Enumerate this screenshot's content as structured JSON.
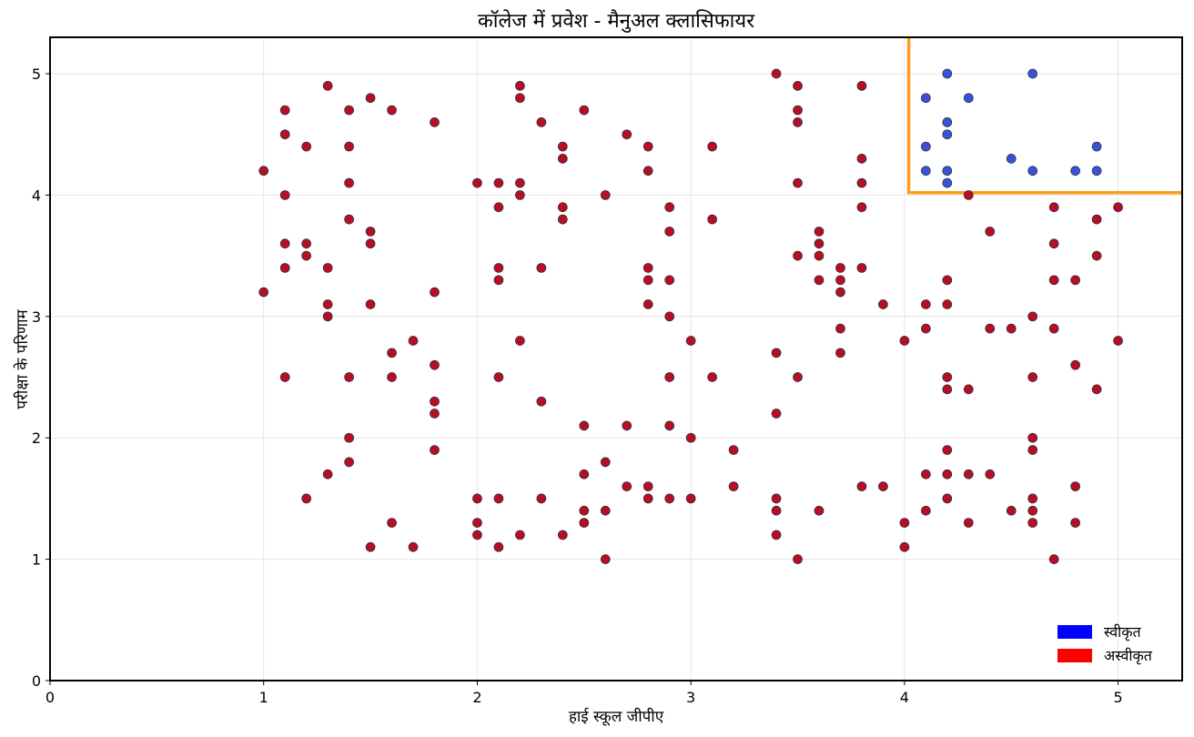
{
  "chart_data": {
    "type": "scatter",
    "title": "कॉलेज में प्रवेश - मैनुअल क्लासिफायर",
    "xlabel": "हाई स्कूल जीपीए",
    "ylabel": "परीक्षा के परिणाम",
    "xlim": [
      0,
      5.3
    ],
    "ylim": [
      0,
      5.3
    ],
    "xticks": [
      "0",
      "1",
      "2",
      "3",
      "4",
      "5"
    ],
    "yticks": [
      "0",
      "1",
      "2",
      "3",
      "4",
      "5"
    ],
    "grid": true,
    "legend_position": "bottom-right",
    "decision_boundary": {
      "x": 4.02,
      "y": 4.02,
      "color": "#ff9c1c"
    },
    "series": [
      {
        "name": "स्वीकृत",
        "color": "#3a52d6",
        "legend_color": "#0000ff",
        "points": [
          [
            4.1,
            4.8
          ],
          [
            4.2,
            5.0
          ],
          [
            4.3,
            4.8
          ],
          [
            4.6,
            5.0
          ],
          [
            4.2,
            4.6
          ],
          [
            4.2,
            4.5
          ],
          [
            4.1,
            4.4
          ],
          [
            4.9,
            4.4
          ],
          [
            4.5,
            4.3
          ],
          [
            4.1,
            4.2
          ],
          [
            4.2,
            4.2
          ],
          [
            4.6,
            4.2
          ],
          [
            4.8,
            4.2
          ],
          [
            4.9,
            4.2
          ],
          [
            4.2,
            4.1
          ]
        ]
      },
      {
        "name": "अस्वीकृत",
        "color": "#b40f24",
        "legend_color": "#ff0000",
        "points": [
          [
            1.0,
            4.2
          ],
          [
            1.0,
            3.2
          ],
          [
            1.1,
            4.7
          ],
          [
            1.1,
            4.5
          ],
          [
            1.1,
            4.0
          ],
          [
            1.1,
            3.6
          ],
          [
            1.1,
            3.4
          ],
          [
            1.1,
            2.5
          ],
          [
            1.2,
            4.4
          ],
          [
            1.2,
            3.6
          ],
          [
            1.2,
            3.5
          ],
          [
            1.2,
            1.5
          ],
          [
            1.3,
            4.9
          ],
          [
            1.3,
            3.4
          ],
          [
            1.3,
            3.1
          ],
          [
            1.3,
            3.0
          ],
          [
            1.3,
            1.7
          ],
          [
            1.4,
            4.7
          ],
          [
            1.4,
            4.4
          ],
          [
            1.4,
            4.1
          ],
          [
            1.4,
            3.8
          ],
          [
            1.4,
            2.5
          ],
          [
            1.4,
            2.0
          ],
          [
            1.4,
            1.8
          ],
          [
            1.5,
            4.8
          ],
          [
            1.5,
            3.7
          ],
          [
            1.5,
            3.6
          ],
          [
            1.5,
            3.1
          ],
          [
            1.5,
            1.1
          ],
          [
            1.6,
            4.7
          ],
          [
            1.6,
            2.7
          ],
          [
            1.6,
            2.5
          ],
          [
            1.6,
            1.3
          ],
          [
            1.7,
            2.8
          ],
          [
            1.7,
            1.1
          ],
          [
            1.8,
            4.6
          ],
          [
            1.8,
            3.2
          ],
          [
            1.8,
            2.6
          ],
          [
            1.8,
            2.3
          ],
          [
            1.8,
            2.2
          ],
          [
            1.8,
            1.9
          ],
          [
            2.0,
            4.1
          ],
          [
            2.0,
            1.5
          ],
          [
            2.0,
            1.3
          ],
          [
            2.0,
            1.2
          ],
          [
            2.1,
            4.1
          ],
          [
            2.1,
            3.9
          ],
          [
            2.1,
            3.4
          ],
          [
            2.1,
            3.3
          ],
          [
            2.1,
            2.5
          ],
          [
            2.1,
            1.5
          ],
          [
            2.1,
            1.1
          ],
          [
            2.2,
            4.9
          ],
          [
            2.2,
            4.8
          ],
          [
            2.2,
            4.1
          ],
          [
            2.2,
            4.0
          ],
          [
            2.2,
            2.8
          ],
          [
            2.2,
            1.2
          ],
          [
            2.3,
            4.6
          ],
          [
            2.3,
            3.4
          ],
          [
            2.3,
            2.3
          ],
          [
            2.3,
            1.5
          ],
          [
            2.4,
            4.4
          ],
          [
            2.4,
            4.3
          ],
          [
            2.4,
            3.9
          ],
          [
            2.4,
            3.8
          ],
          [
            2.4,
            1.2
          ],
          [
            2.5,
            4.7
          ],
          [
            2.5,
            2.1
          ],
          [
            2.5,
            1.7
          ],
          [
            2.5,
            1.4
          ],
          [
            2.5,
            1.3
          ],
          [
            2.6,
            4.0
          ],
          [
            2.6,
            1.8
          ],
          [
            2.6,
            1.4
          ],
          [
            2.6,
            1.0
          ],
          [
            2.7,
            4.5
          ],
          [
            2.7,
            2.1
          ],
          [
            2.7,
            1.6
          ],
          [
            2.8,
            4.4
          ],
          [
            2.8,
            4.2
          ],
          [
            2.8,
            3.4
          ],
          [
            2.8,
            3.3
          ],
          [
            2.8,
            3.1
          ],
          [
            2.8,
            1.6
          ],
          [
            2.8,
            1.5
          ],
          [
            2.9,
            3.9
          ],
          [
            2.9,
            3.7
          ],
          [
            2.9,
            3.3
          ],
          [
            2.9,
            3.0
          ],
          [
            2.9,
            2.5
          ],
          [
            2.9,
            2.1
          ],
          [
            2.9,
            1.5
          ],
          [
            3.0,
            2.8
          ],
          [
            3.0,
            2.0
          ],
          [
            3.0,
            1.5
          ],
          [
            3.1,
            4.4
          ],
          [
            3.1,
            3.8
          ],
          [
            3.1,
            2.5
          ],
          [
            3.2,
            1.9
          ],
          [
            3.2,
            1.6
          ],
          [
            3.4,
            5.0
          ],
          [
            3.4,
            2.7
          ],
          [
            3.4,
            2.2
          ],
          [
            3.4,
            1.5
          ],
          [
            3.4,
            1.4
          ],
          [
            3.4,
            1.2
          ],
          [
            3.5,
            4.9
          ],
          [
            3.5,
            4.7
          ],
          [
            3.5,
            4.6
          ],
          [
            3.5,
            4.1
          ],
          [
            3.5,
            3.5
          ],
          [
            3.5,
            2.5
          ],
          [
            3.5,
            1.0
          ],
          [
            3.6,
            3.7
          ],
          [
            3.6,
            3.6
          ],
          [
            3.6,
            3.5
          ],
          [
            3.6,
            3.3
          ],
          [
            3.6,
            1.4
          ],
          [
            3.7,
            3.4
          ],
          [
            3.7,
            3.3
          ],
          [
            3.7,
            3.2
          ],
          [
            3.7,
            2.9
          ],
          [
            3.7,
            2.7
          ],
          [
            3.8,
            4.9
          ],
          [
            3.8,
            4.3
          ],
          [
            3.8,
            4.1
          ],
          [
            3.8,
            3.9
          ],
          [
            3.8,
            3.4
          ],
          [
            3.8,
            1.6
          ],
          [
            3.9,
            3.1
          ],
          [
            3.9,
            1.6
          ],
          [
            4.0,
            2.8
          ],
          [
            4.0,
            1.3
          ],
          [
            4.0,
            1.1
          ],
          [
            4.1,
            3.1
          ],
          [
            4.1,
            2.9
          ],
          [
            4.1,
            1.7
          ],
          [
            4.1,
            1.4
          ],
          [
            4.2,
            3.3
          ],
          [
            4.2,
            3.1
          ],
          [
            4.2,
            2.5
          ],
          [
            4.2,
            2.4
          ],
          [
            4.2,
            1.9
          ],
          [
            4.2,
            1.7
          ],
          [
            4.2,
            1.5
          ],
          [
            4.3,
            4.0
          ],
          [
            4.3,
            2.4
          ],
          [
            4.3,
            1.7
          ],
          [
            4.3,
            1.3
          ],
          [
            4.4,
            3.7
          ],
          [
            4.4,
            2.9
          ],
          [
            4.4,
            1.7
          ],
          [
            4.5,
            2.9
          ],
          [
            4.5,
            1.4
          ],
          [
            4.6,
            3.0
          ],
          [
            4.6,
            2.5
          ],
          [
            4.6,
            2.0
          ],
          [
            4.6,
            1.9
          ],
          [
            4.6,
            1.5
          ],
          [
            4.6,
            1.4
          ],
          [
            4.6,
            1.3
          ],
          [
            4.7,
            3.9
          ],
          [
            4.7,
            3.6
          ],
          [
            4.7,
            3.3
          ],
          [
            4.7,
            2.9
          ],
          [
            4.7,
            1.0
          ],
          [
            4.8,
            3.3
          ],
          [
            4.8,
            2.6
          ],
          [
            4.8,
            1.6
          ],
          [
            4.8,
            1.3
          ],
          [
            4.9,
            3.8
          ],
          [
            4.9,
            3.5
          ],
          [
            4.9,
            2.4
          ],
          [
            5.0,
            3.9
          ],
          [
            5.0,
            2.8
          ]
        ]
      }
    ]
  }
}
